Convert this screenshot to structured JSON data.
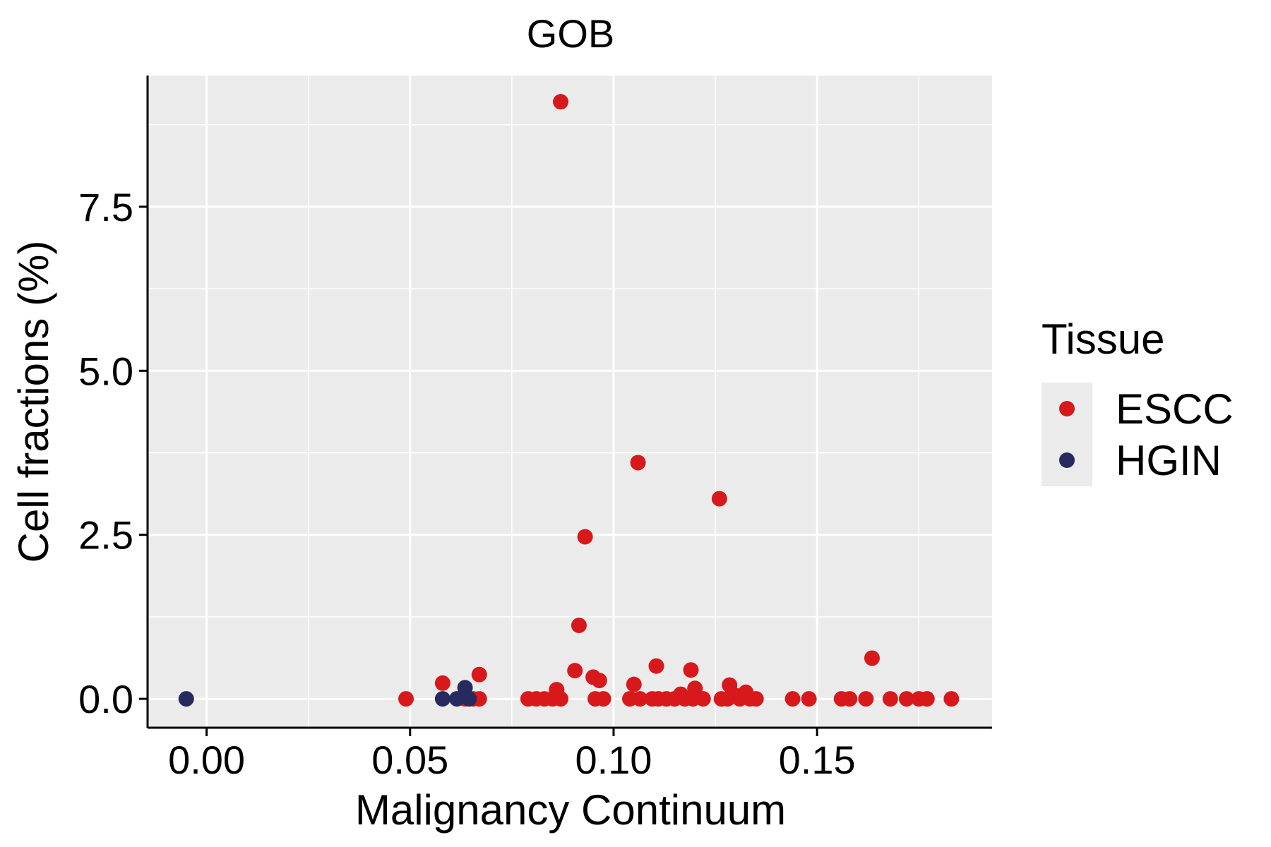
{
  "chart_data": {
    "type": "scatter",
    "title": "GOB",
    "xlabel": "Malignancy Continuum",
    "ylabel": "Cell fractions (%)",
    "xlim": [
      -0.0145,
      0.193
    ],
    "ylim": [
      -0.44,
      9.5
    ],
    "xticks": [
      0.0,
      0.05,
      0.1,
      0.15
    ],
    "xtick_labels": [
      "0.00",
      "0.05",
      "0.10",
      "0.15"
    ],
    "yticks": [
      0.0,
      2.5,
      5.0,
      7.5
    ],
    "ytick_labels": [
      "0.0",
      "2.5",
      "5.0",
      "7.5"
    ],
    "grid": true,
    "legend": {
      "title": "Tissue",
      "position": "right"
    },
    "colors": {
      "ESCC": "#d7191c",
      "HGIN": "#262a5e",
      "panel": "#ebebeb",
      "grid": "#ffffff"
    },
    "series": [
      {
        "name": "ESCC",
        "points": [
          [
            0.049,
            0.0
          ],
          [
            0.058,
            0.24
          ],
          [
            0.0635,
            0.0
          ],
          [
            0.0655,
            0.0
          ],
          [
            0.067,
            0.37
          ],
          [
            0.067,
            0.0
          ],
          [
            0.079,
            0.0
          ],
          [
            0.081,
            0.0
          ],
          [
            0.083,
            0.0
          ],
          [
            0.085,
            0.0
          ],
          [
            0.086,
            0.14
          ],
          [
            0.087,
            0.0
          ],
          [
            0.087,
            9.1
          ],
          [
            0.0905,
            0.43
          ],
          [
            0.0915,
            1.12
          ],
          [
            0.093,
            2.47
          ],
          [
            0.095,
            0.33
          ],
          [
            0.0955,
            0.0
          ],
          [
            0.0965,
            0.28
          ],
          [
            0.0975,
            0.0
          ],
          [
            0.104,
            0.0
          ],
          [
            0.105,
            0.22
          ],
          [
            0.106,
            3.6
          ],
          [
            0.1065,
            0.0
          ],
          [
            0.1095,
            0.0
          ],
          [
            0.1105,
            0.5
          ],
          [
            0.111,
            0.0
          ],
          [
            0.113,
            0.0
          ],
          [
            0.115,
            0.0
          ],
          [
            0.1165,
            0.07
          ],
          [
            0.1175,
            0.0
          ],
          [
            0.119,
            0.44
          ],
          [
            0.1195,
            0.0
          ],
          [
            0.12,
            0.16
          ],
          [
            0.122,
            0.0
          ],
          [
            0.126,
            3.05
          ],
          [
            0.1265,
            0.0
          ],
          [
            0.128,
            0.0
          ],
          [
            0.1285,
            0.21
          ],
          [
            0.13,
            0.05
          ],
          [
            0.131,
            0.0
          ],
          [
            0.1325,
            0.1
          ],
          [
            0.1335,
            0.0
          ],
          [
            0.135,
            0.0
          ],
          [
            0.144,
            0.0
          ],
          [
            0.148,
            0.0
          ],
          [
            0.156,
            0.0
          ],
          [
            0.158,
            0.0
          ],
          [
            0.162,
            0.0
          ],
          [
            0.1635,
            0.62
          ],
          [
            0.168,
            0.0
          ],
          [
            0.172,
            0.0
          ],
          [
            0.175,
            0.0
          ],
          [
            0.177,
            0.0
          ],
          [
            0.183,
            0.0
          ]
        ]
      },
      {
        "name": "HGIN",
        "points": [
          [
            -0.005,
            0.0
          ],
          [
            0.058,
            0.0
          ],
          [
            0.0615,
            0.0
          ],
          [
            0.0635,
            0.17
          ],
          [
            0.0645,
            0.0
          ]
        ]
      }
    ]
  }
}
